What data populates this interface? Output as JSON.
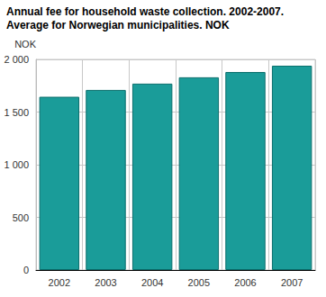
{
  "chart_data": {
    "type": "bar",
    "title": "Annual fee for household waste collection. 2002-2007.",
    "subtitle": "Average for Norwegian municipalities. NOK",
    "y_label": "NOK",
    "categories": [
      "2002",
      "2003",
      "2004",
      "2005",
      "2006",
      "2007"
    ],
    "values": [
      1645,
      1710,
      1770,
      1830,
      1880,
      1940
    ],
    "color": "#1a9c99",
    "ylim": [
      0,
      2000
    ],
    "yticks": [
      0,
      500,
      {
        "value": 1000,
        "label": "1 000"
      },
      {
        "value": 1500,
        "label": "1 500"
      },
      {
        "value": 2000,
        "label": "2 000"
      }
    ],
    "grid": true
  }
}
